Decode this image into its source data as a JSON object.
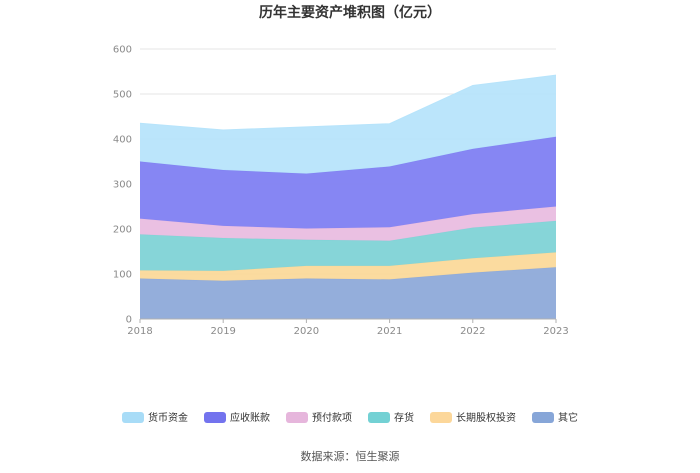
{
  "chart_data": {
    "type": "area",
    "stacked": true,
    "title": "历年主要资产堆积图（亿元）",
    "source": "数据来源：恒生聚源",
    "x": [
      "2018",
      "2019",
      "2020",
      "2021",
      "2022",
      "2023"
    ],
    "ylim": [
      0,
      600
    ],
    "yticks": [
      0,
      100,
      200,
      300,
      400,
      500,
      600
    ],
    "grid": true,
    "legend_position": "bottom",
    "series": [
      {
        "name": "其它",
        "color": "#8eaad9",
        "values": [
          90,
          85,
          90,
          88,
          103,
          115
        ]
      },
      {
        "name": "长期股权投资",
        "color": "#fbd99a",
        "values": [
          18,
          22,
          28,
          30,
          32,
          33
        ]
      },
      {
        "name": "存货",
        "color": "#7fd3d6",
        "values": [
          80,
          73,
          58,
          56,
          68,
          70
        ]
      },
      {
        "name": "预付款项",
        "color": "#e9bde0",
        "values": [
          35,
          27,
          25,
          30,
          30,
          32
        ]
      },
      {
        "name": "应收账款",
        "color": "#8080f2",
        "values": [
          127,
          124,
          122,
          135,
          145,
          155
        ]
      },
      {
        "name": "货币资金",
        "color": "#b7e4fb",
        "values": [
          85,
          89,
          104,
          95,
          141,
          137
        ]
      }
    ],
    "legend_order": [
      {
        "name": "货币资金",
        "color": "#a8dcf7"
      },
      {
        "name": "应收账款",
        "color": "#7373ee"
      },
      {
        "name": "预付款项",
        "color": "#e6b6dc"
      },
      {
        "name": "存货",
        "color": "#73d1d4"
      },
      {
        "name": "长期股权投资",
        "color": "#fcd79a"
      },
      {
        "name": "其它",
        "color": "#87a6d8"
      }
    ]
  }
}
